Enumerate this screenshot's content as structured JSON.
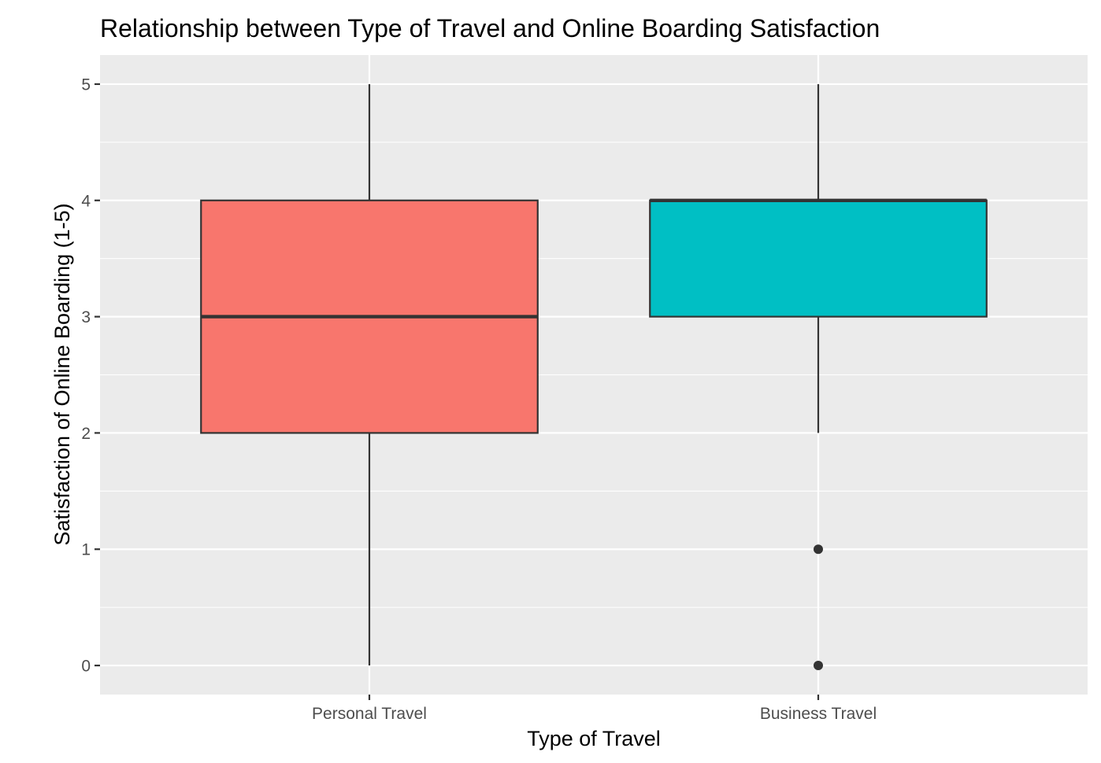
{
  "chart_data": {
    "type": "boxplot",
    "title": "Relationship between Type of Travel and Online Boarding Satisfaction",
    "xlabel": "Type of Travel",
    "ylabel": "Satisfaction of Online Boarding (1-5)",
    "ylim": [
      -0.25,
      5.25
    ],
    "yticks": [
      0,
      1,
      2,
      3,
      4,
      5
    ],
    "categories": [
      "Personal Travel",
      "Business Travel"
    ],
    "grid": true,
    "legend": "none",
    "series": [
      {
        "category": "Personal Travel",
        "color": "#F8766D",
        "whisker_low": 0,
        "q1": 2,
        "median": 3,
        "q3": 4,
        "whisker_high": 5,
        "outliers": []
      },
      {
        "category": "Business Travel",
        "color": "#00BFC4",
        "whisker_low": 2,
        "q1": 3,
        "median": 4,
        "q3": 4,
        "whisker_high": 5,
        "outliers": [
          1,
          0
        ]
      }
    ],
    "colors": {
      "panel_background": "#EBEBEB",
      "grid_major": "#FFFFFF",
      "box_outline": "#333333"
    }
  }
}
